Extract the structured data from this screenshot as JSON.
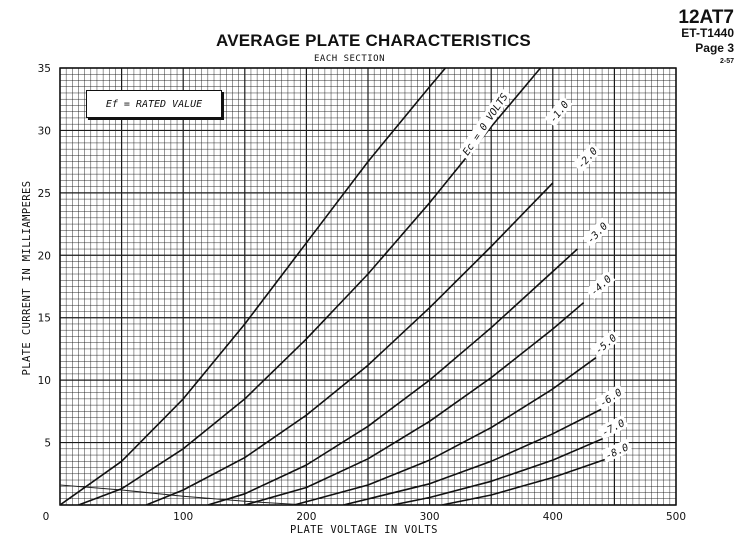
{
  "header": {
    "tube": "12AT7",
    "code": "ET-T1440",
    "page": "Page 3",
    "revision": "2-57"
  },
  "chart_data": {
    "type": "line",
    "title": "AVERAGE PLATE CHARACTERISTICS",
    "subtitle": "EACH SECTION",
    "xlabel": "PLATE VOLTAGE IN VOLTS",
    "ylabel": "PLATE CURRENT IN MILLIAMPERES",
    "xlim": [
      0,
      500
    ],
    "ylim": [
      0,
      35
    ],
    "x_ticks": [
      0,
      100,
      200,
      300,
      400,
      500
    ],
    "y_ticks": [
      0,
      5,
      10,
      15,
      20,
      25,
      30,
      35
    ],
    "grid": true,
    "annotation": "Ef = RATED VALUE",
    "curve_label_prefix": "Ec = ",
    "curve_label_suffix": " VOLTS",
    "series": [
      {
        "name": "0",
        "x": [
          0,
          50,
          100,
          150,
          200,
          250,
          300,
          330
        ],
        "y": [
          0,
          3.5,
          8.5,
          14.5,
          21,
          27.5,
          33.5,
          37
        ]
      },
      {
        "name": "-1.0",
        "x": [
          15,
          50,
          100,
          150,
          200,
          250,
          300,
          350,
          390
        ],
        "y": [
          0,
          1.3,
          4.5,
          8.5,
          13.3,
          18.5,
          24.2,
          30.3,
          35
        ]
      },
      {
        "name": "-2.0",
        "x": [
          70,
          100,
          150,
          200,
          250,
          300,
          350,
          400
        ],
        "y": [
          0,
          1.2,
          3.8,
          7.2,
          11.2,
          15.8,
          20.7,
          25.8
        ]
      },
      {
        "name": "-3.0",
        "x": [
          120,
          150,
          200,
          250,
          300,
          350,
          400,
          420
        ],
        "y": [
          0,
          0.9,
          3.2,
          6.3,
          10,
          14.2,
          18.7,
          20.5
        ]
      },
      {
        "name": "-4.0",
        "x": [
          150,
          200,
          250,
          300,
          350,
          400,
          425
        ],
        "y": [
          0,
          1.4,
          3.7,
          6.7,
          10.2,
          14.1,
          16.2
        ]
      },
      {
        "name": "-5.0",
        "x": [
          190,
          250,
          300,
          350,
          400,
          435
        ],
        "y": [
          0,
          1.6,
          3.6,
          6.2,
          9.3,
          11.8
        ]
      },
      {
        "name": "-6.0",
        "x": [
          230,
          300,
          350,
          400,
          440
        ],
        "y": [
          0,
          1.7,
          3.5,
          5.7,
          7.7
        ]
      },
      {
        "name": "-7.0",
        "x": [
          270,
          300,
          350,
          400,
          445
        ],
        "y": [
          0,
          0.6,
          1.9,
          3.6,
          5.5
        ]
      },
      {
        "name": "-8.0",
        "x": [
          310,
          350,
          400,
          450
        ],
        "y": [
          0,
          0.8,
          2.2,
          3.9
        ]
      }
    ],
    "dissipation_curve": {
      "x": [
        0,
        50,
        100,
        150,
        200
      ],
      "y": [
        1.6,
        1.2,
        0.7,
        0.3,
        0
      ]
    }
  }
}
